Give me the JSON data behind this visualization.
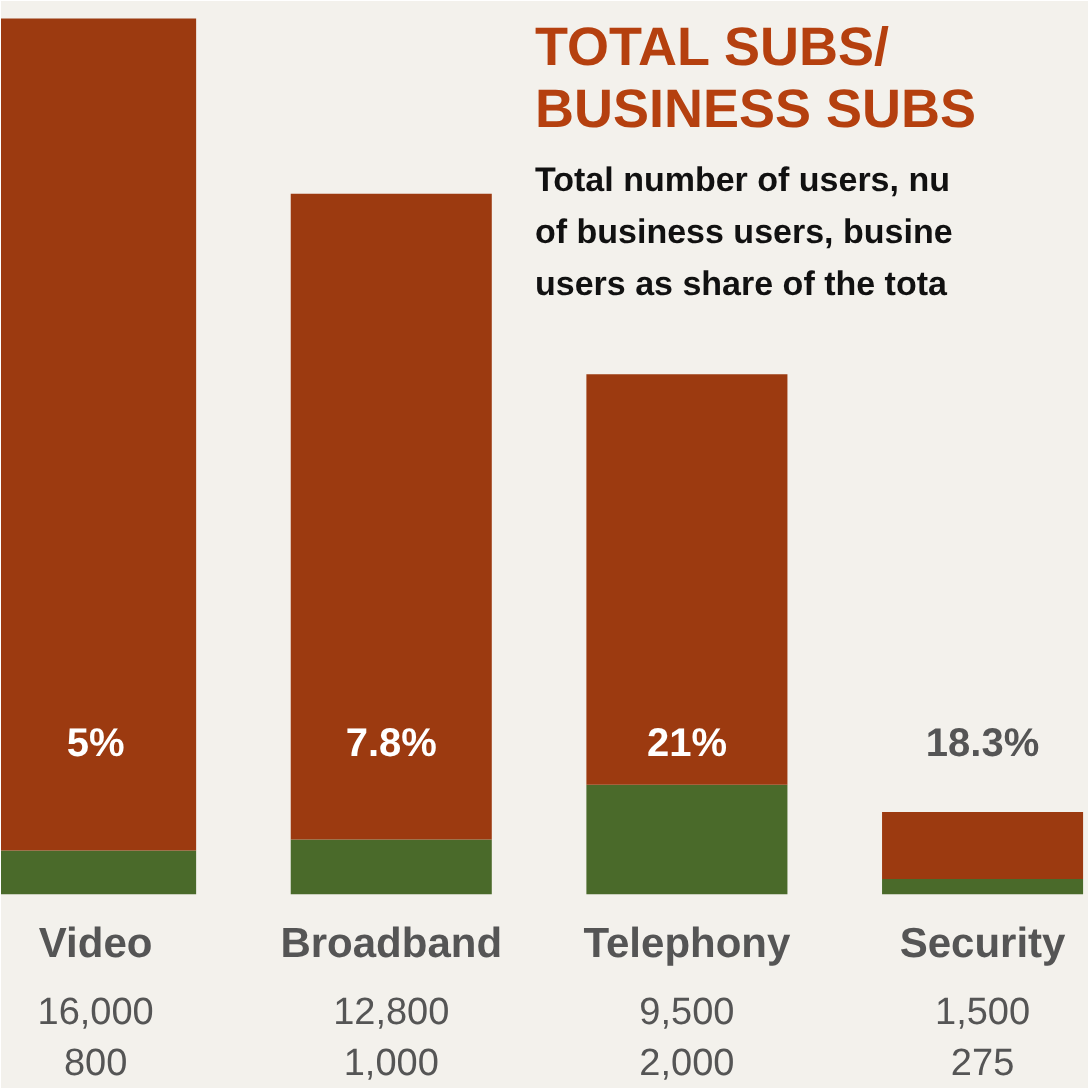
{
  "chart_data": {
    "type": "bar",
    "stacked": true,
    "title": "TOTAL SUBS/\nBUSINESS SUBS",
    "subtitle": "Total number of users, nu\nof business users, busine\nusers as share of the tota",
    "categories": [
      "Video",
      "Broadband",
      "Telephony",
      "Security"
    ],
    "series": [
      {
        "color": "#4a6a2a",
        "values": [
          800,
          1000,
          2000,
          275
        ],
        "value_labels": [
          "800",
          "1,000",
          "2,000",
          "275"
        ]
      },
      {
        "color": "#9c3a10",
        "values": [
          15200,
          11800,
          7500,
          1225
        ]
      }
    ],
    "totals": [
      "16,000",
      "12,800",
      "9,500",
      "1,500"
    ],
    "annotations": [
      "5%",
      "7.8%",
      "21%",
      "18.3%"
    ]
  }
}
